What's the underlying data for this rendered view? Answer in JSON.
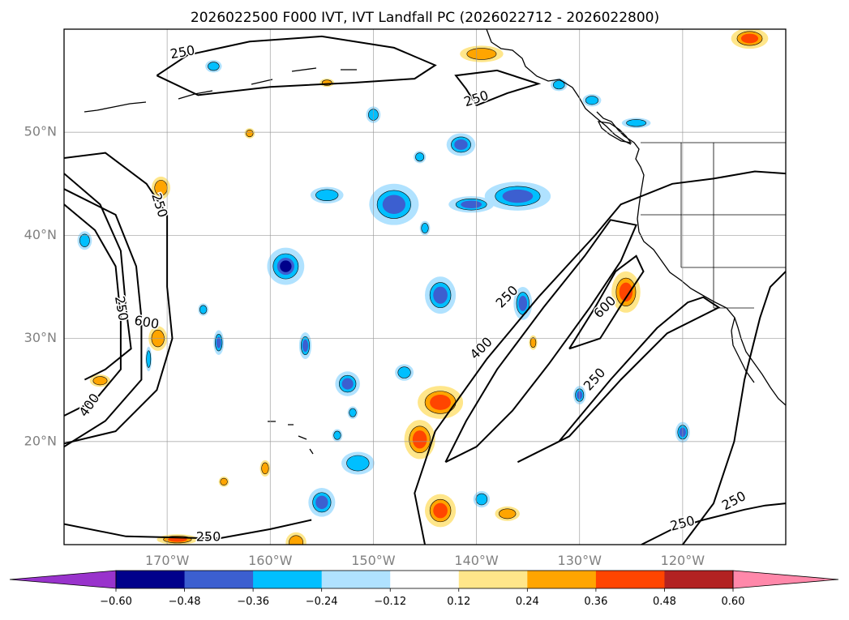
{
  "chart_data": {
    "type": "heatmap",
    "title": "2026022500 F000 IVT, IVT Landfall PC (2026022712 - 2026022800)",
    "lon_range": [
      -180,
      -110
    ],
    "lat_range": [
      10,
      60
    ],
    "grid": true,
    "lat_ticks": [
      {
        "value": 20,
        "label": "20°N"
      },
      {
        "value": 30,
        "label": "30°N"
      },
      {
        "value": 40,
        "label": "40°N"
      },
      {
        "value": 50,
        "label": "50°N"
      }
    ],
    "lon_ticks": [
      {
        "value": -170,
        "label": "170°W"
      },
      {
        "value": -160,
        "label": "160°W"
      },
      {
        "value": -150,
        "label": "150°W"
      },
      {
        "value": -140,
        "label": "140°W"
      },
      {
        "value": -130,
        "label": "130°W"
      },
      {
        "value": -120,
        "label": "120°W"
      }
    ],
    "colorbar": {
      "levels": [
        -0.6,
        -0.48,
        -0.36,
        -0.24,
        -0.12,
        0.12,
        0.24,
        0.36,
        0.48,
        0.6
      ],
      "tick_labels": [
        "−0.60",
        "−0.48",
        "−0.36",
        "−0.24",
        "−0.12",
        "0.12",
        "0.24",
        "0.36",
        "0.48",
        "0.60"
      ],
      "colors": [
        "#9933cc",
        "#00008b",
        "#3c5fd0",
        "#00bfff",
        "#b0e2ff",
        "#ffffff",
        "#ffe68a",
        "#ffa500",
        "#ff4500",
        "#b22222",
        "#ff88aa"
      ],
      "extend": "both"
    },
    "ivt_contour_labels": [
      {
        "text": "250",
        "lon": -168.5,
        "lat": 57.7,
        "rot": -10
      },
      {
        "text": "250",
        "lon": -140.0,
        "lat": 53.2,
        "rot": -18
      },
      {
        "text": "250",
        "lon": -170.8,
        "lat": 42.9,
        "rot": 72
      },
      {
        "text": "250",
        "lon": -174.5,
        "lat": 32.9,
        "rot": 80
      },
      {
        "text": "600",
        "lon": -172.0,
        "lat": 31.5,
        "rot": 10
      },
      {
        "text": "400",
        "lon": -177.5,
        "lat": 23.5,
        "rot": -55
      },
      {
        "text": "250",
        "lon": -137.0,
        "lat": 34.0,
        "rot": -45
      },
      {
        "text": "400",
        "lon": -139.5,
        "lat": 29.0,
        "rot": -45
      },
      {
        "text": "600",
        "lon": -127.5,
        "lat": 33.0,
        "rot": -45
      },
      {
        "text": "250",
        "lon": -128.5,
        "lat": 26.0,
        "rot": -48
      },
      {
        "text": "250",
        "lon": -120.0,
        "lat": 12.0,
        "rot": -15
      },
      {
        "text": "250",
        "lon": -115.0,
        "lat": 14.2,
        "rot": -28
      },
      {
        "text": "250",
        "lon": -166.0,
        "lat": 10.7,
        "rot": 0
      }
    ],
    "ivt_contours": [
      {
        "level": 250,
        "points": [
          [
            -171,
            55.5
          ],
          [
            -168,
            57.5
          ],
          [
            -162,
            58.8
          ],
          [
            -155,
            59.3
          ],
          [
            -148,
            58.2
          ],
          [
            -144,
            56.5
          ],
          [
            -146,
            55.2
          ],
          [
            -152,
            54.8
          ],
          [
            -160,
            54.4
          ],
          [
            -167,
            53.6
          ],
          [
            -171,
            55.5
          ]
        ]
      },
      {
        "level": 250,
        "points": [
          [
            -140,
            52.6
          ],
          [
            -137,
            53.8
          ],
          [
            -134,
            54.7
          ],
          [
            -138,
            56.0
          ],
          [
            -142,
            55.5
          ],
          [
            -141,
            54.2
          ],
          [
            -140,
            52.6
          ]
        ]
      },
      {
        "level": 250,
        "points": [
          [
            -180,
            44.5
          ],
          [
            -175,
            42
          ],
          [
            -173,
            37
          ],
          [
            -172.5,
            32
          ],
          [
            -172.5,
            26
          ],
          [
            -176,
            22
          ],
          [
            -180,
            19.5
          ]
        ]
      },
      {
        "level": 250,
        "points": [
          [
            -180,
            47.5
          ],
          [
            -176,
            48.0
          ],
          [
            -172,
            45
          ],
          [
            -170,
            42
          ],
          [
            -170,
            35
          ],
          [
            -169.5,
            30
          ],
          [
            -171,
            25
          ],
          [
            -175,
            21
          ],
          [
            -180,
            19.8
          ]
        ]
      },
      {
        "level": 400,
        "points": [
          [
            -180,
            43
          ],
          [
            -177,
            40.5
          ],
          [
            -175,
            37
          ],
          [
            -174.5,
            32
          ],
          [
            -174.5,
            27
          ],
          [
            -177,
            24
          ],
          [
            -180,
            22.5
          ]
        ]
      },
      {
        "level": 600,
        "points": [
          [
            -180,
            46
          ],
          [
            -176.5,
            43
          ],
          [
            -174.5,
            38.5
          ],
          [
            -174,
            33
          ],
          [
            -173.5,
            29
          ],
          [
            -176,
            27
          ],
          [
            -178,
            26
          ]
        ]
      },
      {
        "level": 250,
        "points": [
          [
            -180,
            12
          ],
          [
            -174,
            10.8
          ],
          [
            -165,
            10.6
          ],
          [
            -160,
            11.5
          ],
          [
            -156,
            12.4
          ]
        ]
      },
      {
        "level": 250,
        "points": [
          [
            -145,
            10
          ],
          [
            -146,
            15
          ],
          [
            -144,
            21
          ],
          [
            -139,
            28
          ],
          [
            -134,
            34
          ],
          [
            -128.5,
            40
          ],
          [
            -126,
            43
          ],
          [
            -121,
            45
          ],
          [
            -117,
            45.5
          ],
          [
            -113,
            46.2
          ],
          [
            -110,
            46.0
          ]
        ]
      },
      {
        "level": 400,
        "points": [
          [
            -143,
            18
          ],
          [
            -141,
            22
          ],
          [
            -138,
            27
          ],
          [
            -133.5,
            33
          ],
          [
            -129.5,
            38
          ],
          [
            -127,
            41.5
          ],
          [
            -124.5,
            41.0
          ],
          [
            -126,
            37.5
          ],
          [
            -129,
            33
          ],
          [
            -133,
            27.5
          ],
          [
            -136.5,
            23
          ],
          [
            -140,
            19.5
          ],
          [
            -143,
            18
          ]
        ]
      },
      {
        "level": 600,
        "points": [
          [
            -131,
            29
          ],
          [
            -128.5,
            33
          ],
          [
            -126.5,
            36.5
          ],
          [
            -124.5,
            38.0
          ],
          [
            -123.8,
            36.5
          ],
          [
            -125.8,
            33.5
          ],
          [
            -128,
            30
          ],
          [
            -131,
            29
          ]
        ]
      },
      {
        "level": 250,
        "points": [
          [
            -136,
            18
          ],
          [
            -132,
            20
          ],
          [
            -127,
            26
          ],
          [
            -122.5,
            31
          ],
          [
            -119.5,
            33.5
          ],
          [
            -118,
            34.0
          ],
          [
            -116.5,
            33.0
          ],
          [
            -121.5,
            30.5
          ],
          [
            -126,
            26
          ],
          [
            -131,
            20.5
          ],
          [
            -136,
            18
          ]
        ]
      },
      {
        "level": 250,
        "points": [
          [
            -124,
            10
          ],
          [
            -121,
            11.5
          ],
          [
            -118,
            12.4
          ],
          [
            -114,
            13.4
          ],
          [
            -112,
            13.8
          ],
          [
            -110,
            14.0
          ]
        ]
      },
      {
        "level": 250,
        "points": [
          [
            -120,
            10
          ],
          [
            -117,
            14
          ],
          [
            -115,
            20
          ],
          [
            -114,
            26
          ],
          [
            -112.5,
            32
          ],
          [
            -111.5,
            35
          ],
          [
            -110,
            36.5
          ]
        ]
      }
    ],
    "pc_regions": [
      {
        "lon": -143.5,
        "lat": 23.8,
        "dlon": 2.2,
        "dlat": 1.6,
        "value": 0.36
      },
      {
        "lon": -145.5,
        "lat": 20.2,
        "dlon": 1.5,
        "dlat": 1.9,
        "value": 0.36
      },
      {
        "lon": -143.5,
        "lat": 13.3,
        "dlon": 1.5,
        "dlat": 1.6,
        "value": 0.36
      },
      {
        "lon": -125.5,
        "lat": 34.5,
        "dlon": 1.4,
        "dlat": 2.0,
        "value": 0.36
      },
      {
        "lon": -170.9,
        "lat": 30.0,
        "dlon": 0.9,
        "dlat": 1.2,
        "value": 0.24
      },
      {
        "lon": -170.6,
        "lat": 44.6,
        "dlon": 0.9,
        "dlat": 1.1,
        "value": 0.24
      },
      {
        "lon": -176.5,
        "lat": 25.9,
        "dlon": 1.0,
        "dlat": 0.6,
        "value": 0.24
      },
      {
        "lon": -139.5,
        "lat": 57.6,
        "dlon": 2.1,
        "dlat": 0.8,
        "value": 0.24
      },
      {
        "lon": -113.5,
        "lat": 59.1,
        "dlon": 1.8,
        "dlat": 1.0,
        "value": 0.36
      },
      {
        "lon": -162.0,
        "lat": 49.9,
        "dlon": 0.5,
        "dlat": 0.5,
        "value": 0.24
      },
      {
        "lon": -157.5,
        "lat": 10.2,
        "dlon": 1.0,
        "dlat": 1.0,
        "value": 0.24
      },
      {
        "lon": -169.0,
        "lat": 10.5,
        "dlon": 2.0,
        "dlat": 0.5,
        "value": 0.36
      },
      {
        "lon": -160.5,
        "lat": 17.4,
        "dlon": 0.5,
        "dlat": 0.8,
        "value": 0.24
      },
      {
        "lon": -137.0,
        "lat": 13.0,
        "dlon": 1.2,
        "dlat": 0.7,
        "value": 0.24
      },
      {
        "lon": -134.5,
        "lat": 29.6,
        "dlon": 0.4,
        "dlat": 0.7,
        "value": 0.24
      },
      {
        "lon": -164.5,
        "lat": 16.1,
        "dlon": 0.5,
        "dlat": 0.5,
        "value": 0.24
      },
      {
        "lon": -154.5,
        "lat": 54.8,
        "dlon": 0.7,
        "dlat": 0.4,
        "value": 0.24
      }
    ],
    "nc_regions": [
      {
        "lon": -148.0,
        "lat": 43.0,
        "dlon": 2.4,
        "dlat": 2.0,
        "value": -0.36
      },
      {
        "lon": -136.0,
        "lat": 43.8,
        "dlon": 3.2,
        "dlat": 1.4,
        "value": -0.36
      },
      {
        "lon": -140.5,
        "lat": 43.0,
        "dlon": 2.2,
        "dlat": 0.8,
        "value": -0.36
      },
      {
        "lon": -141.5,
        "lat": 48.8,
        "dlon": 1.4,
        "dlat": 1.1,
        "value": -0.36
      },
      {
        "lon": -158.5,
        "lat": 37.0,
        "dlon": 1.8,
        "dlat": 1.8,
        "value": -0.48
      },
      {
        "lon": -143.5,
        "lat": 34.2,
        "dlon": 1.5,
        "dlat": 1.8,
        "value": -0.36
      },
      {
        "lon": -135.5,
        "lat": 33.4,
        "dlon": 0.9,
        "dlat": 1.6,
        "value": -0.36
      },
      {
        "lon": -152.5,
        "lat": 25.6,
        "dlon": 1.2,
        "dlat": 1.2,
        "value": -0.36
      },
      {
        "lon": -151.5,
        "lat": 17.9,
        "dlon": 1.6,
        "dlat": 1.1,
        "value": -0.24
      },
      {
        "lon": -155.0,
        "lat": 14.1,
        "dlon": 1.3,
        "dlat": 1.4,
        "value": -0.36
      },
      {
        "lon": -165.0,
        "lat": 29.6,
        "dlon": 0.5,
        "dlat": 1.2,
        "value": -0.36
      },
      {
        "lon": -156.6,
        "lat": 29.3,
        "dlon": 0.6,
        "dlat": 1.3,
        "value": -0.36
      },
      {
        "lon": -150.0,
        "lat": 51.7,
        "dlon": 0.7,
        "dlat": 0.8,
        "value": -0.24
      },
      {
        "lon": -128.8,
        "lat": 53.1,
        "dlon": 0.9,
        "dlat": 0.6,
        "value": -0.24
      },
      {
        "lon": -124.5,
        "lat": 50.9,
        "dlon": 1.4,
        "dlat": 0.5,
        "value": -0.24
      },
      {
        "lon": -178.0,
        "lat": 39.5,
        "dlon": 0.7,
        "dlat": 0.9,
        "value": -0.24
      },
      {
        "lon": -130.0,
        "lat": 24.5,
        "dlon": 0.6,
        "dlat": 0.9,
        "value": -0.36
      },
      {
        "lon": -120.0,
        "lat": 20.9,
        "dlon": 0.7,
        "dlat": 1.0,
        "value": -0.36
      },
      {
        "lon": -139.5,
        "lat": 14.4,
        "dlon": 0.8,
        "dlat": 0.8,
        "value": -0.24
      },
      {
        "lon": -152.0,
        "lat": 22.8,
        "dlon": 0.5,
        "dlat": 0.6,
        "value": -0.24
      },
      {
        "lon": -153.5,
        "lat": 20.6,
        "dlon": 0.5,
        "dlat": 0.6,
        "value": -0.24
      },
      {
        "lon": -147.0,
        "lat": 26.7,
        "dlon": 0.9,
        "dlat": 0.8,
        "value": -0.24
      },
      {
        "lon": -154.5,
        "lat": 43.9,
        "dlon": 1.6,
        "dlat": 0.8,
        "value": -0.24
      },
      {
        "lon": -166.5,
        "lat": 32.8,
        "dlon": 0.5,
        "dlat": 0.6,
        "value": -0.24
      },
      {
        "lon": -171.8,
        "lat": 28.0,
        "dlon": 0.3,
        "dlat": 1.2,
        "value": -0.24
      },
      {
        "lon": -165.5,
        "lat": 56.4,
        "dlon": 0.8,
        "dlat": 0.6,
        "value": -0.24
      },
      {
        "lon": -132.0,
        "lat": 54.6,
        "dlon": 0.8,
        "dlat": 0.6,
        "value": -0.24
      },
      {
        "lon": -145.5,
        "lat": 47.6,
        "dlon": 0.6,
        "dlat": 0.6,
        "value": -0.24
      },
      {
        "lon": -145.0,
        "lat": 40.7,
        "dlon": 0.5,
        "dlat": 0.7,
        "value": -0.24
      }
    ]
  }
}
